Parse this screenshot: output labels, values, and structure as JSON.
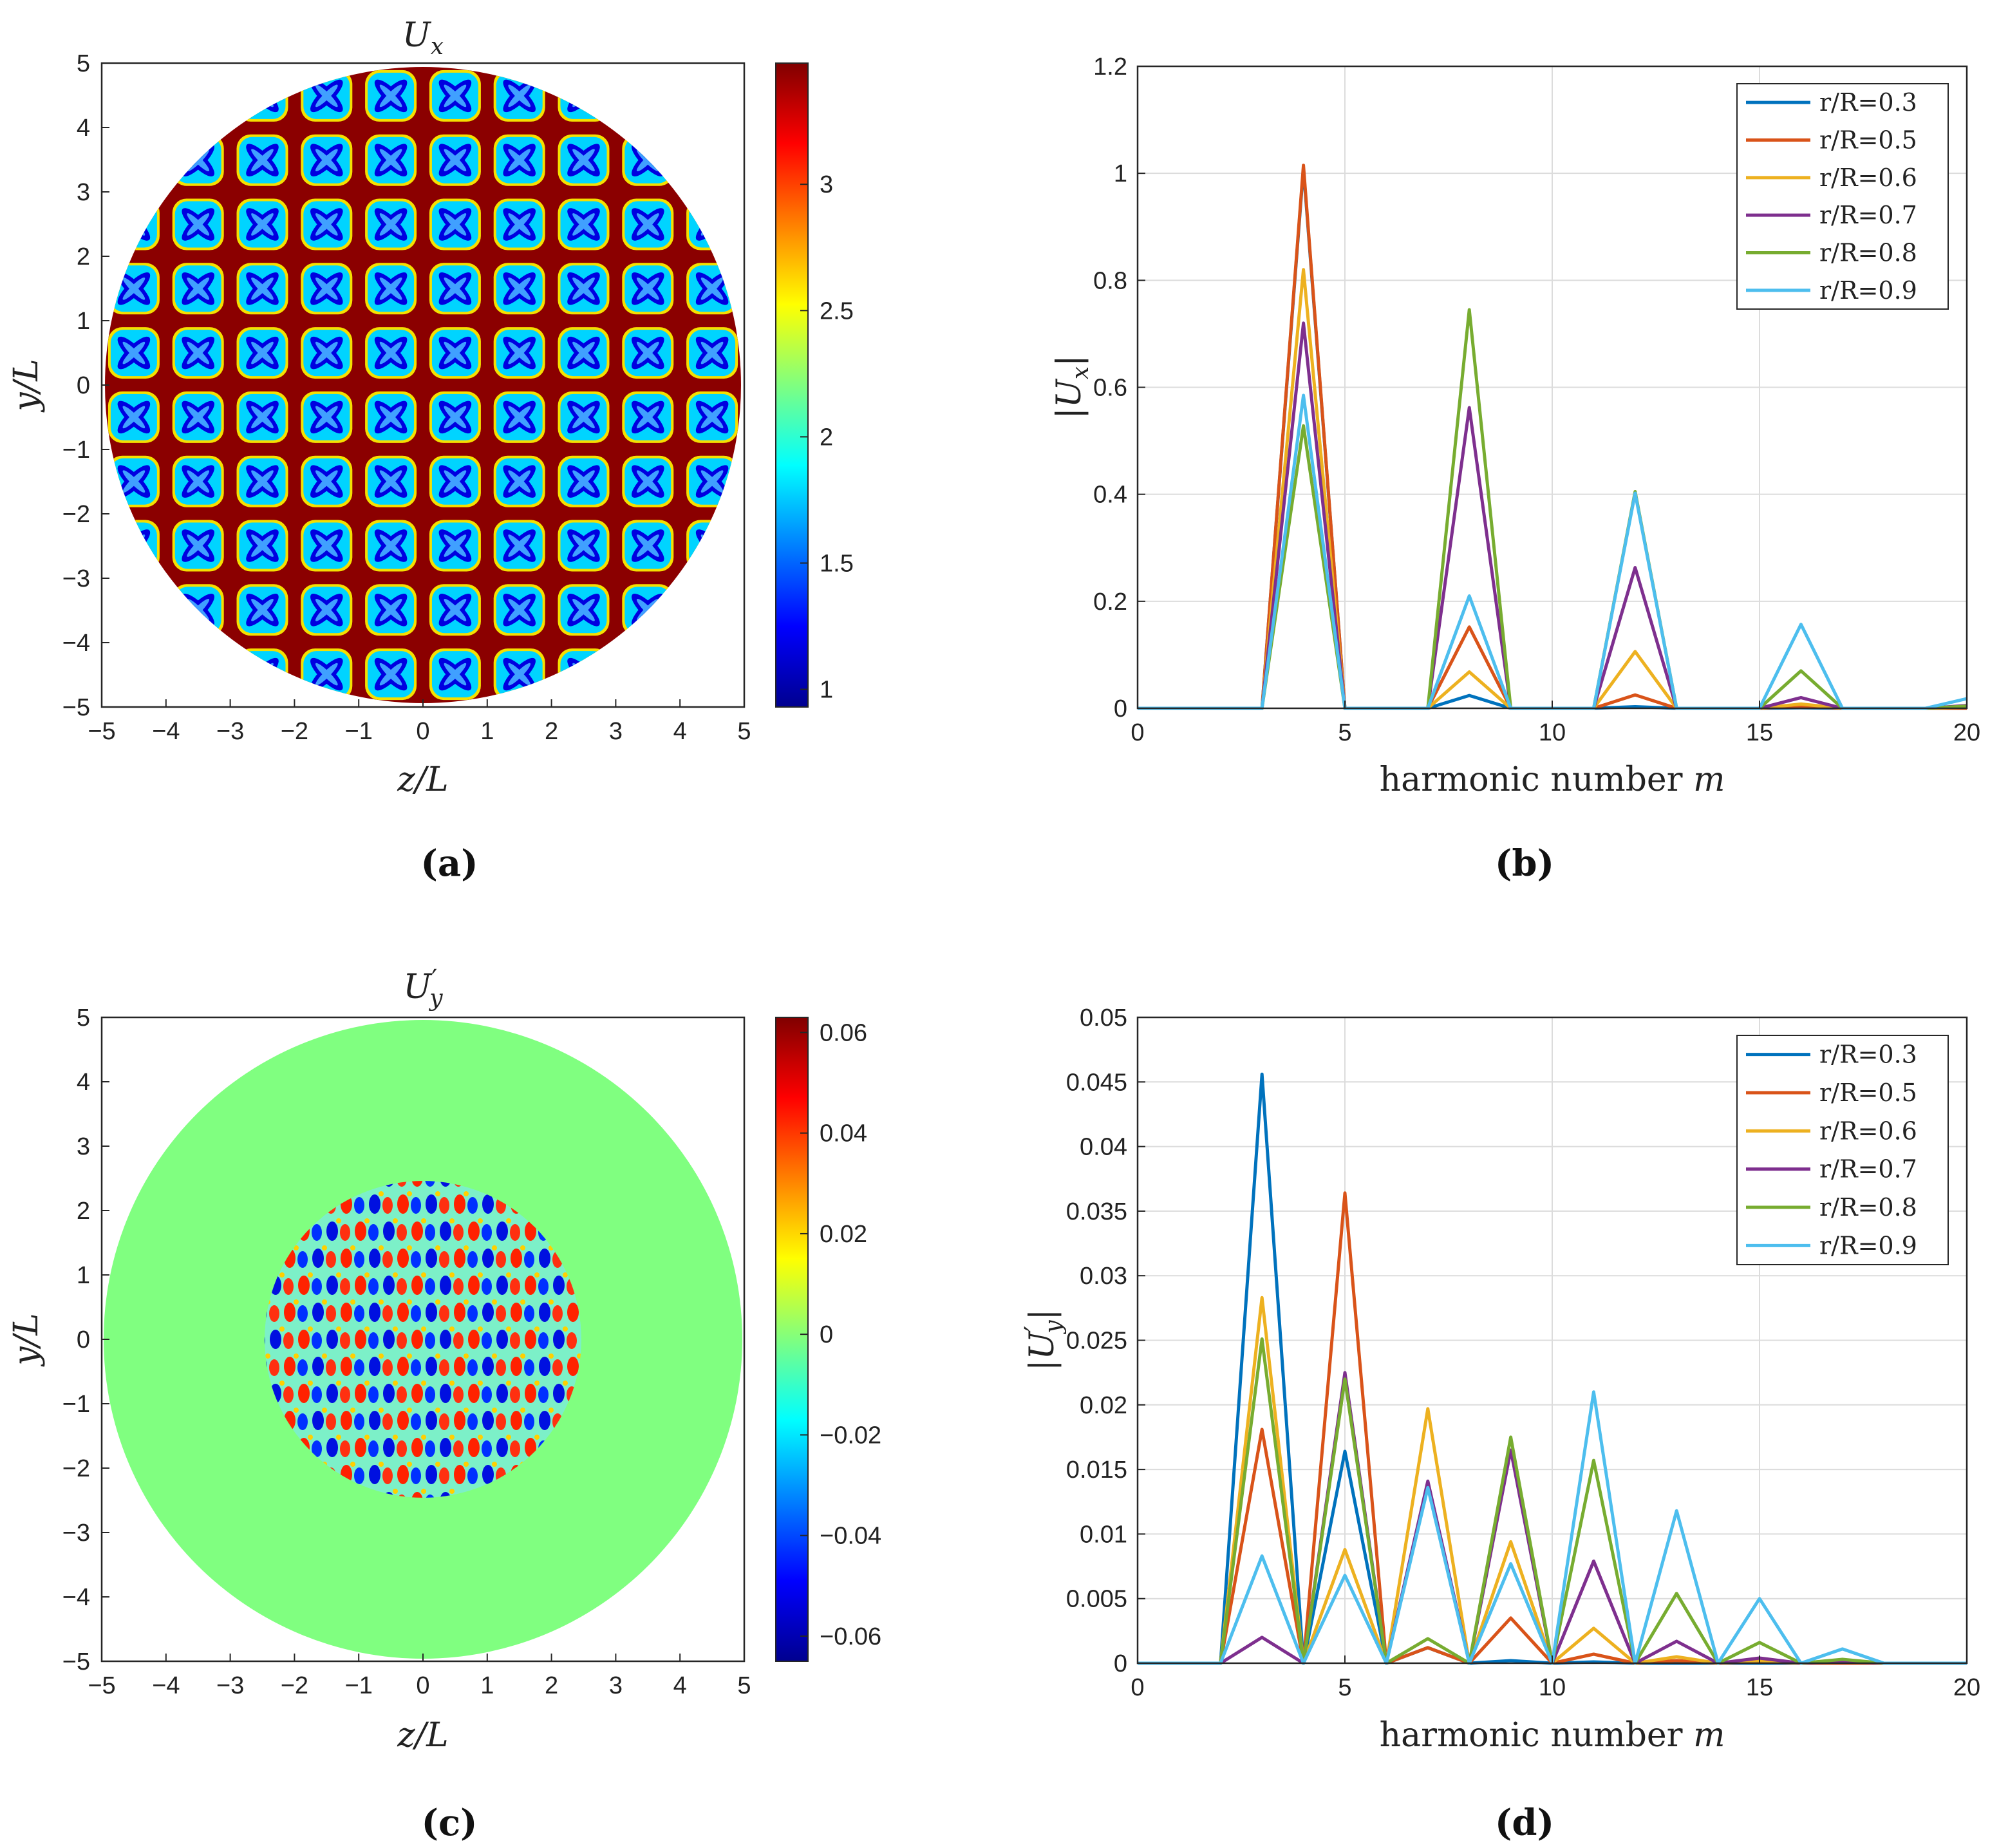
{
  "colors": {
    "series": [
      "#0072BD",
      "#D95319",
      "#EDB120",
      "#7E2F8E",
      "#77AC30",
      "#4DBEEE"
    ],
    "uniform_green": "#80FF80"
  },
  "chart_data": [
    {
      "id": "a",
      "type": "heatmap",
      "title_main": "U",
      "title_sub": "x",
      "title_prime": "",
      "xlabel": "z/L",
      "ylabel": "y/L",
      "xlim": [
        -5,
        5
      ],
      "ylim": [
        -5,
        5
      ],
      "xticks": [
        "−5",
        "−4",
        "−3",
        "−2",
        "−1",
        "0",
        "1",
        "2",
        "3",
        "4",
        "5"
      ],
      "yticks": [
        "−5",
        "−4",
        "−3",
        "−2",
        "−1",
        "0",
        "1",
        "2",
        "3",
        "4",
        "5"
      ],
      "colorbar": {
        "range": [
          0.93,
          3.48
        ],
        "ticks": [
          1,
          1.5,
          2,
          2.5,
          3
        ],
        "tick_labels": [
          "1",
          "1.5",
          "2",
          "2.5",
          "3"
        ]
      },
      "domain_radius": 5,
      "label": "(a)"
    },
    {
      "id": "b",
      "type": "line",
      "xlabel": "harmonic number",
      "xlabel_var": "m",
      "ylabel_main": "|U",
      "ylabel_sub": "x",
      "ylabel_end": "|",
      "xlim": [
        0,
        20
      ],
      "ylim": [
        0,
        1.2
      ],
      "xticks": [
        0,
        5,
        10,
        15,
        20
      ],
      "xtick_labels": [
        "0",
        "5",
        "10",
        "15",
        "20"
      ],
      "yticks": [
        0,
        0.2,
        0.4,
        0.6,
        0.8,
        1,
        1.2
      ],
      "ytick_labels": [
        "0",
        "0.2",
        "0.4",
        "0.6",
        "0.8",
        "1",
        "1.2"
      ],
      "x": [
        0,
        1,
        2,
        3,
        4,
        5,
        6,
        7,
        8,
        9,
        10,
        11,
        12,
        13,
        14,
        15,
        16,
        17,
        18,
        19,
        20
      ],
      "series": [
        {
          "name": "r/R=0.3",
          "values": [
            0,
            0,
            0,
            0,
            1.01,
            0,
            0,
            0,
            0.024,
            0,
            0,
            0,
            0.003,
            0,
            0,
            0,
            0.001,
            0,
            0,
            0,
            0
          ]
        },
        {
          "name": "r/R=0.5",
          "values": [
            0,
            0,
            0,
            0,
            1.015,
            0,
            0,
            0,
            0.152,
            0,
            0,
            0,
            0.025,
            0,
            0,
            0,
            0.004,
            0,
            0,
            0,
            0
          ]
        },
        {
          "name": "r/R=0.6",
          "values": [
            0,
            0,
            0,
            0,
            0.82,
            0,
            0,
            0,
            0.068,
            0,
            0,
            0,
            0.106,
            0,
            0,
            0,
            0.008,
            0,
            0,
            0,
            0.002
          ]
        },
        {
          "name": "r/R=0.7",
          "values": [
            0,
            0,
            0,
            0,
            0.72,
            0,
            0,
            0,
            0.562,
            0,
            0,
            0,
            0.263,
            0,
            0,
            0,
            0.02,
            0,
            0,
            0,
            0.005
          ]
        },
        {
          "name": "r/R=0.8",
          "values": [
            0,
            0,
            0,
            0,
            0.528,
            0,
            0,
            0,
            0.745,
            0,
            0,
            0,
            0.405,
            0,
            0,
            0,
            0.07,
            0,
            0,
            0,
            0.004
          ]
        },
        {
          "name": "r/R=0.9",
          "values": [
            0,
            0,
            0,
            0,
            0.585,
            0,
            0,
            0,
            0.21,
            0,
            0,
            0,
            0.402,
            0,
            0,
            0,
            0.157,
            0,
            0,
            0,
            0.018
          ]
        }
      ],
      "legend_loc": "top-right",
      "label": "(b)"
    },
    {
      "id": "c",
      "type": "heatmap",
      "title_main": "U",
      "title_sub": "y",
      "title_prime": "′",
      "xlabel": "z/L",
      "ylabel": "y/L",
      "xlim": [
        -5,
        5
      ],
      "ylim": [
        -5,
        5
      ],
      "xticks": [
        "−5",
        "−4",
        "−3",
        "−2",
        "−1",
        "0",
        "1",
        "2",
        "3",
        "4",
        "5"
      ],
      "yticks": [
        "−5",
        "−4",
        "−3",
        "−2",
        "−1",
        "0",
        "1",
        "2",
        "3",
        "4",
        "5"
      ],
      "colorbar": {
        "range": [
          -0.065,
          0.063
        ],
        "ticks": [
          -0.06,
          -0.04,
          -0.02,
          0,
          0.02,
          0.04,
          0.06
        ],
        "tick_labels": [
          "−0.06",
          "−0.04",
          "−0.02",
          "0",
          "0.02",
          "0.04",
          "0.06"
        ]
      },
      "domain_radius": 5,
      "inner_radius": 2.5,
      "label": "(c)"
    },
    {
      "id": "d",
      "type": "line",
      "xlabel": "harmonic number",
      "xlabel_var": "m",
      "ylabel_main": "|U",
      "ylabel_sub": "y",
      "ylabel_prime": "′",
      "ylabel_end": "|",
      "xlim": [
        0,
        20
      ],
      "ylim": [
        0,
        0.05
      ],
      "xticks": [
        0,
        5,
        10,
        15,
        20
      ],
      "xtick_labels": [
        "0",
        "5",
        "10",
        "15",
        "20"
      ],
      "yticks": [
        0,
        0.005,
        0.01,
        0.015,
        0.02,
        0.025,
        0.03,
        0.035,
        0.04,
        0.045,
        0.05
      ],
      "ytick_labels": [
        "0",
        "0.005",
        "0.01",
        "0.015",
        "0.02",
        "0.025",
        "0.03",
        "0.035",
        "0.04",
        "0.045",
        "0.05"
      ],
      "x": [
        0,
        1,
        2,
        3,
        4,
        5,
        6,
        7,
        8,
        9,
        10,
        11,
        12,
        13,
        14,
        15,
        16,
        17,
        18,
        19,
        20
      ],
      "series": [
        {
          "name": "r/R=0.3",
          "values": [
            0,
            0,
            0,
            0.0456,
            0,
            0.0164,
            0,
            0.0012,
            0,
            0.0002,
            0,
            0.0001,
            0,
            0,
            0,
            0,
            0,
            0,
            0,
            0,
            0
          ]
        },
        {
          "name": "r/R=0.5",
          "values": [
            0,
            0,
            0,
            0.0181,
            0,
            0.0364,
            0,
            0.0012,
            0,
            0.0035,
            0,
            0.0007,
            0,
            0.0002,
            0,
            0.0001,
            0,
            0,
            0,
            0,
            0
          ]
        },
        {
          "name": "r/R=0.6",
          "values": [
            0,
            0,
            0,
            0.0283,
            0,
            0.0088,
            0,
            0.0197,
            0,
            0.0094,
            0,
            0.0027,
            0,
            0.0005,
            0,
            0.0002,
            0,
            0.0001,
            0,
            0,
            0
          ]
        },
        {
          "name": "r/R=0.7",
          "values": [
            0,
            0,
            0,
            0.002,
            0,
            0.0225,
            0,
            0.0141,
            0,
            0.0165,
            0,
            0.0079,
            0,
            0.0017,
            0,
            0.0004,
            0,
            0.0001,
            0,
            0,
            0
          ]
        },
        {
          "name": "r/R=0.8",
          "values": [
            0,
            0,
            0,
            0.0251,
            0,
            0.022,
            0,
            0.0019,
            0,
            0.0175,
            0,
            0.0157,
            0,
            0.0054,
            0,
            0.0016,
            0,
            0.0003,
            0,
            0,
            0
          ]
        },
        {
          "name": "r/R=0.9",
          "values": [
            0,
            0,
            0,
            0.0083,
            0,
            0.0068,
            0,
            0.0136,
            0,
            0.0077,
            0,
            0.021,
            0,
            0.0118,
            0,
            0.005,
            0,
            0.0011,
            0,
            0,
            0
          ]
        }
      ],
      "legend_loc": "top-right",
      "label": "(d)"
    }
  ]
}
